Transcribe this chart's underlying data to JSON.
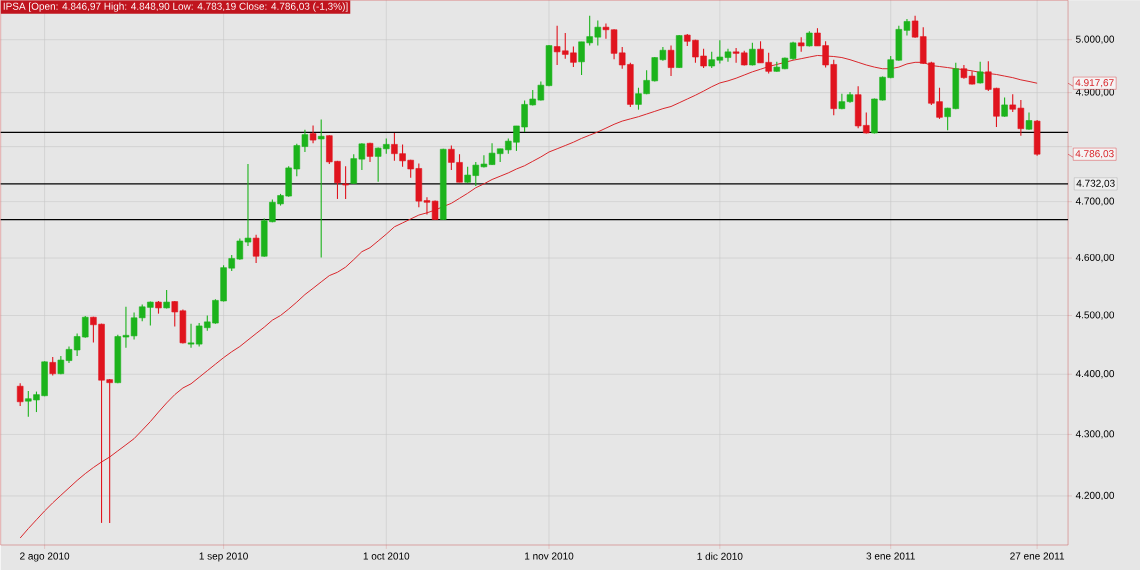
{
  "chart_data": {
    "type": "candlestick",
    "title": "IPSA [Open: 4.846,97  High: 4.848,90  Low: 4.783,19  Close: 4.786,03 (-1,3%)]",
    "categories": [
      null,
      null,
      null,
      "2 ago 2010",
      null,
      null,
      null,
      null,
      null,
      null,
      null,
      null,
      null,
      null,
      null,
      null,
      null,
      null,
      null,
      null,
      null,
      null,
      null,
      null,
      null,
      "1 sep 2010",
      null,
      null,
      null,
      null,
      null,
      null,
      null,
      null,
      null,
      null,
      null,
      null,
      null,
      null,
      null,
      null,
      null,
      null,
      null,
      "1 oct 2010",
      null,
      null,
      null,
      null,
      null,
      null,
      null,
      null,
      null,
      null,
      null,
      null,
      null,
      null,
      null,
      null,
      null,
      null,
      null,
      "1 nov 2010",
      null,
      null,
      null,
      null,
      null,
      null,
      null,
      null,
      null,
      null,
      null,
      null,
      null,
      null,
      null,
      null,
      null,
      null,
      null,
      null,
      "1 dic 2010",
      null,
      null,
      null,
      null,
      null,
      null,
      null,
      null,
      null,
      null,
      null,
      null,
      null,
      null,
      null,
      null,
      null,
      null,
      null,
      null,
      "3 ene 2011",
      null,
      null,
      null,
      null,
      null,
      null,
      null,
      null,
      null,
      null,
      null,
      null,
      null,
      null,
      null,
      null,
      null,
      "27 ene 2011"
    ],
    "ohlc": [
      [
        4380,
        4385,
        4347,
        4354
      ],
      [
        4355,
        4372,
        4329,
        4359
      ],
      [
        4357,
        4371,
        4337,
        4366
      ],
      [
        4364,
        4422,
        4363,
        4421
      ],
      [
        4420,
        4429,
        4398,
        4401
      ],
      [
        4401,
        4431,
        4400,
        4424
      ],
      [
        4423,
        4447,
        4419,
        4442
      ],
      [
        4441,
        4469,
        4431,
        4464
      ],
      [
        4463,
        4499,
        4462,
        4497
      ],
      [
        4497,
        4498,
        4454,
        4484
      ],
      [
        4485,
        4486,
        4157,
        4390
      ],
      [
        4391,
        4392,
        4157,
        4386
      ],
      [
        4386,
        4467,
        4385,
        4464
      ],
      [
        4463,
        4515,
        4445,
        4466
      ],
      [
        4465,
        4505,
        4459,
        4496
      ],
      [
        4496,
        4519,
        4490,
        4515
      ],
      [
        4514,
        4524,
        4483,
        4523
      ],
      [
        4523,
        4525,
        4503,
        4513
      ],
      [
        4513,
        4544,
        4512,
        4523
      ],
      [
        4524,
        4525,
        4481,
        4506
      ],
      [
        4508,
        4510,
        4452,
        4453
      ],
      [
        4451,
        4486,
        4445,
        4453
      ],
      [
        4451,
        4487,
        4447,
        4482
      ],
      [
        4479,
        4500,
        4474,
        4489
      ],
      [
        4487,
        4528,
        4486,
        4526
      ],
      [
        4525,
        4587,
        4524,
        4583
      ],
      [
        4582,
        4605,
        4577,
        4599
      ],
      [
        4598,
        4634,
        4597,
        4630
      ],
      [
        4628,
        4768,
        4621,
        4635
      ],
      [
        4635,
        4641,
        4591,
        4603
      ],
      [
        4603,
        4670,
        4602,
        4666
      ],
      [
        4664,
        4704,
        4663,
        4699
      ],
      [
        4696,
        4714,
        4693,
        4711
      ],
      [
        4710,
        4764,
        4709,
        4761
      ],
      [
        4759,
        4805,
        4746,
        4802
      ],
      [
        4800,
        4831,
        4790,
        4822
      ],
      [
        4824,
        4839,
        4806,
        4812
      ],
      [
        4814,
        4850,
        4601,
        4819
      ],
      [
        4820,
        4821,
        4768,
        4772
      ],
      [
        4773,
        4774,
        4705,
        4734
      ],
      [
        4732,
        4764,
        4705,
        4730
      ],
      [
        4733,
        4786,
        4732,
        4778
      ],
      [
        4777,
        4806,
        4757,
        4805
      ],
      [
        4806,
        4807,
        4772,
        4782
      ],
      [
        4782,
        4798,
        4736,
        4797
      ],
      [
        4796,
        4815,
        4787,
        4804
      ],
      [
        4804,
        4825,
        4774,
        4787
      ],
      [
        4787,
        4804,
        4763,
        4774
      ],
      [
        4775,
        4776,
        4743,
        4759
      ],
      [
        4760,
        4769,
        4690,
        4701
      ],
      [
        4702,
        4708,
        4677,
        4699
      ],
      [
        4701,
        4702,
        4667,
        4668
      ],
      [
        4668,
        4796,
        4667,
        4795
      ],
      [
        4795,
        4802,
        4757,
        4771
      ],
      [
        4771,
        4786,
        4735,
        4735
      ],
      [
        4735,
        4763,
        4734,
        4748
      ],
      [
        4747,
        4772,
        4728,
        4766
      ],
      [
        4763,
        4784,
        4762,
        4768
      ],
      [
        4767,
        4806,
        4766,
        4788
      ],
      [
        4787,
        4796,
        4772,
        4796
      ],
      [
        4794,
        4815,
        4787,
        4810
      ],
      [
        4808,
        4838,
        4792,
        4838
      ],
      [
        4836,
        4885,
        4827,
        4878
      ],
      [
        4877,
        4905,
        4876,
        4888
      ],
      [
        4886,
        4921,
        4885,
        4914
      ],
      [
        4913,
        4990,
        4912,
        4989
      ],
      [
        4987,
        5027,
        4952,
        4977
      ],
      [
        4979,
        5013,
        4964,
        4972
      ],
      [
        4975,
        4987,
        4948,
        4957
      ],
      [
        4958,
        4996,
        4933,
        4996
      ],
      [
        4994,
        5046,
        4989,
        5006
      ],
      [
        5005,
        5037,
        4989,
        5024
      ],
      [
        5024,
        5031,
        5002,
        5019
      ],
      [
        5019,
        5020,
        4963,
        4974
      ],
      [
        4975,
        4986,
        4945,
        4952
      ],
      [
        4953,
        4956,
        4873,
        4878
      ],
      [
        4878,
        4909,
        4868,
        4898
      ],
      [
        4898,
        4942,
        4897,
        4923
      ],
      [
        4922,
        4967,
        4921,
        4966
      ],
      [
        4962,
        4986,
        4960,
        4980
      ],
      [
        4980,
        4989,
        4931,
        4947
      ],
      [
        4947,
        5009,
        4946,
        5008
      ],
      [
        5009,
        5011,
        4988,
        4997
      ],
      [
        4999,
        5000,
        4956,
        4967
      ],
      [
        4969,
        4983,
        4946,
        4950
      ],
      [
        4950,
        4977,
        4946,
        4962
      ],
      [
        4961,
        4999,
        4955,
        4967
      ],
      [
        4966,
        4983,
        4958,
        4977
      ],
      [
        4977,
        4984,
        4956,
        4974
      ],
      [
        4975,
        4979,
        4951,
        4952
      ],
      [
        4952,
        4994,
        4951,
        4982
      ],
      [
        4982,
        4997,
        4956,
        4956
      ],
      [
        4957,
        4975,
        4936,
        4940
      ],
      [
        4940,
        4958,
        4939,
        4948
      ],
      [
        4945,
        4966,
        4944,
        4965
      ],
      [
        4964,
        4996,
        4962,
        4994
      ],
      [
        4994,
        5005,
        4977,
        4988
      ],
      [
        4988,
        5016,
        4987,
        5013
      ],
      [
        5013,
        5022,
        4988,
        4988
      ],
      [
        4989,
        4997,
        4947,
        4952
      ],
      [
        4953,
        4962,
        4858,
        4870
      ],
      [
        4870,
        4898,
        4869,
        4883
      ],
      [
        4883,
        4901,
        4881,
        4896
      ],
      [
        4896,
        4912,
        4834,
        4838
      ],
      [
        4839,
        4863,
        4824,
        4825
      ],
      [
        4825,
        4889,
        4824,
        4888
      ],
      [
        4886,
        4930,
        4885,
        4929
      ],
      [
        4928,
        4969,
        4927,
        4962
      ],
      [
        4961,
        5027,
        4960,
        5020
      ],
      [
        5018,
        5040,
        5008,
        5035
      ],
      [
        5036,
        5046,
        5004,
        5005
      ],
      [
        5006,
        5024,
        4954,
        4955
      ],
      [
        4956,
        4958,
        4877,
        4880
      ],
      [
        4883,
        4909,
        4851,
        4854
      ],
      [
        4855,
        4872,
        4830,
        4871
      ],
      [
        4870,
        4956,
        4869,
        4945
      ],
      [
        4945,
        4952,
        4926,
        4928
      ],
      [
        4931,
        4940,
        4915,
        4916
      ],
      [
        4918,
        4958,
        4917,
        4939
      ],
      [
        4939,
        4959,
        4903,
        4906
      ],
      [
        4908,
        4909,
        4836,
        4856
      ],
      [
        4856,
        4891,
        4855,
        4877
      ],
      [
        4877,
        4897,
        4864,
        4869
      ],
      [
        4871,
        4886,
        4820,
        4833
      ],
      [
        4832,
        4863,
        4831,
        4848
      ],
      [
        4846.97,
        4848.9,
        4783.19,
        4786.03
      ]
    ],
    "colors": [
      "#e0141e",
      "#1cb31c",
      "#1cb31c",
      "#1cb31c",
      "#e0141e",
      "#1cb31c",
      "#1cb31c",
      "#1cb31c",
      "#1cb31c",
      "#e0141e",
      "#e0141e",
      "#e0141e",
      "#1cb31c",
      "#1cb31c",
      "#1cb31c",
      "#1cb31c",
      "#1cb31c",
      "#e0141e",
      "#1cb31c",
      "#e0141e",
      "#e0141e",
      "#1cb31c",
      "#1cb31c",
      "#1cb31c",
      "#1cb31c",
      "#1cb31c",
      "#1cb31c",
      "#1cb31c",
      "#1cb31c",
      "#e0141e",
      "#1cb31c",
      "#1cb31c",
      "#1cb31c",
      "#1cb31c",
      "#1cb31c",
      "#1cb31c",
      "#e0141e",
      "#1cb31c",
      "#e0141e",
      "#e0141e",
      "#e0141e",
      "#1cb31c",
      "#1cb31c",
      "#e0141e",
      "#1cb31c",
      "#1cb31c",
      "#e0141e",
      "#e0141e",
      "#e0141e",
      "#e0141e",
      "#e0141e",
      "#e0141e",
      "#1cb31c",
      "#e0141e",
      "#e0141e",
      "#1cb31c",
      "#1cb31c",
      "#1cb31c",
      "#1cb31c",
      "#1cb31c",
      "#1cb31c",
      "#1cb31c",
      "#1cb31c",
      "#1cb31c",
      "#1cb31c",
      "#1cb31c",
      "#e0141e",
      "#e0141e",
      "#e0141e",
      "#1cb31c",
      "#1cb31c",
      "#1cb31c",
      "#e0141e",
      "#e0141e",
      "#e0141e",
      "#e0141e",
      "#1cb31c",
      "#1cb31c",
      "#1cb31c",
      "#1cb31c",
      "#e0141e",
      "#1cb31c",
      "#e0141e",
      "#e0141e",
      "#e0141e",
      "#1cb31c",
      "#1cb31c",
      "#1cb31c",
      "#e0141e",
      "#e0141e",
      "#1cb31c",
      "#e0141e",
      "#e0141e",
      "#1cb31c",
      "#1cb31c",
      "#1cb31c",
      "#e0141e",
      "#1cb31c",
      "#e0141e",
      "#e0141e",
      "#e0141e",
      "#1cb31c",
      "#1cb31c",
      "#e0141e",
      "#e0141e",
      "#1cb31c",
      "#1cb31c",
      "#1cb31c",
      "#1cb31c",
      "#1cb31c",
      "#e0141e",
      "#e0141e",
      "#e0141e",
      "#e0141e",
      "#1cb31c",
      "#1cb31c",
      "#e0141e",
      "#e0141e",
      "#1cb31c",
      "#e0141e",
      "#e0141e",
      "#1cb31c",
      "#e0141e",
      "#e0141e",
      "#1cb31c",
      "#e0141e"
    ],
    "series": [
      {
        "type": "line",
        "color": "#d9262b",
        "values": [
          4133,
          4148,
          4162,
          4176,
          4189,
          4201,
          4213,
          4225,
          4236,
          4246,
          4255,
          4263,
          4273,
          4283,
          4293,
          4307,
          4321,
          4337,
          4352,
          4366,
          4377,
          4384,
          4395,
          4406,
          4417,
          4428,
          4438,
          4447,
          4458,
          4469,
          4480,
          4492,
          4500,
          4511,
          4523,
          4536,
          4547,
          4558,
          4569,
          4575,
          4584,
          4597,
          4611,
          4618,
          4630,
          4642,
          4655,
          4662,
          4669,
          4676,
          4680,
          4685,
          4691,
          4697,
          4706,
          4715,
          4725,
          4732,
          4740,
          4746,
          4752,
          4759,
          4765,
          4773,
          4781,
          4790,
          4796,
          4802,
          4808,
          4815,
          4821,
          4827,
          4834,
          4841,
          4847,
          4851,
          4855,
          4860,
          4865,
          4870,
          4874,
          4881,
          4888,
          4895,
          4903,
          4911,
          4918,
          4922,
          4927,
          4933,
          4939,
          4944,
          4949,
          4953,
          4957,
          4961,
          4964,
          4967,
          4970,
          4969,
          4968,
          4966,
          4962,
          4957,
          4952,
          4948,
          4945,
          4945,
          4948,
          4954,
          4957,
          4957,
          4951,
          4949,
          4947,
          4945,
          4943,
          4941,
          4938,
          4936,
          4934,
          4931,
          4928,
          4924,
          4921,
          4917.67
        ]
      }
    ],
    "log": true,
    "ylim": [
      4122,
      5076
    ],
    "yticks": [
      {
        "value": 4200,
        "label": "4.200,00"
      },
      {
        "value": 4300,
        "label": "4.300,00"
      },
      {
        "value": 4400,
        "label": "4.400,00"
      },
      {
        "value": 4500,
        "label": "4.500,00"
      },
      {
        "value": 4600,
        "label": "4.600,00"
      },
      {
        "value": 4700,
        "label": "4.700,00"
      },
      {
        "value": 4800,
        "label": null
      },
      {
        "value": 4900,
        "label": "4.900,00"
      },
      {
        "value": 5000,
        "label": "5.000,00"
      }
    ],
    "grid": true,
    "ref_lines": [
      {
        "axis": "y",
        "value": 4826,
        "color": "#000000"
      },
      {
        "axis": "y",
        "value": 4732.03,
        "label": "4.732,03",
        "color": "#000000"
      },
      {
        "axis": "y",
        "value": 4668,
        "color": "#000000"
      }
    ],
    "annotations": [
      "4.917,67",
      "4.786,03"
    ]
  }
}
